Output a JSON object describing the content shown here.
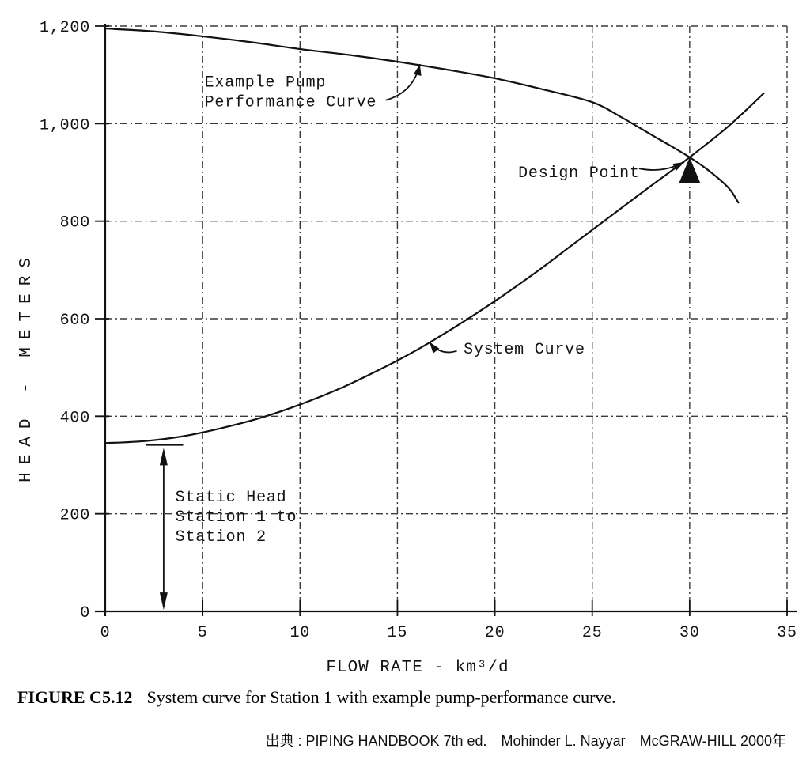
{
  "figure": {
    "caption_tag": "FIGURE C5.12",
    "caption_text": "System curve for Station 1 with example pump-performance curve.",
    "attribution": "出典 : PIPING HANDBOOK 7th ed.　Mohinder L. Nayyar　McGRAW-HILL 2000年"
  },
  "chart_data": {
    "type": "line",
    "title": "",
    "xlabel": "FLOW RATE - km³/d",
    "ylabel": "HEAD - METERS",
    "xlim": [
      0,
      35
    ],
    "ylim": [
      0,
      1200
    ],
    "grid": true,
    "legend_position": "inline-annotations",
    "x_ticks": [
      {
        "value": 0,
        "label": "0"
      },
      {
        "value": 5,
        "label": "5"
      },
      {
        "value": 10,
        "label": "10"
      },
      {
        "value": 15,
        "label": "15"
      },
      {
        "value": 20,
        "label": "20"
      },
      {
        "value": 25,
        "label": "25"
      },
      {
        "value": 30,
        "label": "30"
      },
      {
        "value": 35,
        "label": "35"
      }
    ],
    "y_ticks": [
      {
        "value": 0,
        "label": "0"
      },
      {
        "value": 200,
        "label": "200"
      },
      {
        "value": 400,
        "label": "400"
      },
      {
        "value": 600,
        "label": "600"
      },
      {
        "value": 800,
        "label": "800"
      },
      {
        "value": 1000,
        "label": "1,000"
      },
      {
        "value": 1200,
        "label": "1,200"
      }
    ],
    "series": [
      {
        "name": "Example Pump Performance Curve",
        "points": [
          [
            0,
            1195
          ],
          [
            2.5,
            1189
          ],
          [
            5,
            1179
          ],
          [
            7.5,
            1167
          ],
          [
            10,
            1153
          ],
          [
            12.5,
            1141
          ],
          [
            15,
            1127
          ],
          [
            17.5,
            1111
          ],
          [
            20,
            1093
          ],
          [
            22.5,
            1070
          ],
          [
            25,
            1044
          ],
          [
            26.5,
            1013
          ],
          [
            28,
            978
          ],
          [
            29,
            955
          ],
          [
            30,
            931
          ],
          [
            31,
            903
          ],
          [
            32,
            868
          ],
          [
            32.5,
            838
          ]
        ]
      },
      {
        "name": "System Curve",
        "points": [
          [
            0,
            345
          ],
          [
            2,
            349
          ],
          [
            4,
            359
          ],
          [
            6,
            376
          ],
          [
            8,
            397
          ],
          [
            10,
            424
          ],
          [
            12,
            456
          ],
          [
            14,
            494
          ],
          [
            16,
            536
          ],
          [
            18,
            584
          ],
          [
            20,
            636
          ],
          [
            22,
            692
          ],
          [
            24,
            752
          ],
          [
            26,
            812
          ],
          [
            28,
            872
          ],
          [
            30,
            931
          ],
          [
            32,
            995
          ],
          [
            33.8,
            1062
          ]
        ]
      }
    ],
    "design_point": {
      "x": 30,
      "y": 931
    },
    "static_head": {
      "x": 3,
      "from_y": 3,
      "to_y": 335,
      "bar": {
        "x1": 2.1,
        "x2": 4.0,
        "y": 341
      }
    },
    "annotations": [
      {
        "id": "pump-label",
        "lines": [
          "Example Pump",
          "Performance Curve"
        ],
        "x": 5.1,
        "y": 1087
      },
      {
        "id": "design-label",
        "lines": [
          "Design Point"
        ],
        "x": 21.2,
        "y": 902
      },
      {
        "id": "system-label",
        "lines": [
          "System Curve"
        ],
        "x": 18.4,
        "y": 540
      },
      {
        "id": "static-label",
        "lines": [
          "Static Head",
          "Station 1 to",
          "Station 2"
        ],
        "x": 3.6,
        "y": 237
      }
    ],
    "arrows": [
      {
        "id": "pump-arrow",
        "from": [
          14.4,
          1048
        ],
        "to": [
          16.15,
          1122
        ],
        "bend": 0.3
      },
      {
        "id": "design-arrow",
        "from": [
          27.4,
          908
        ],
        "to": [
          29.72,
          921
        ],
        "bend": 0.18
      },
      {
        "id": "system-arrow",
        "from": [
          18.05,
          534
        ],
        "to": [
          16.65,
          552
        ],
        "bend": -0.35
      }
    ]
  }
}
